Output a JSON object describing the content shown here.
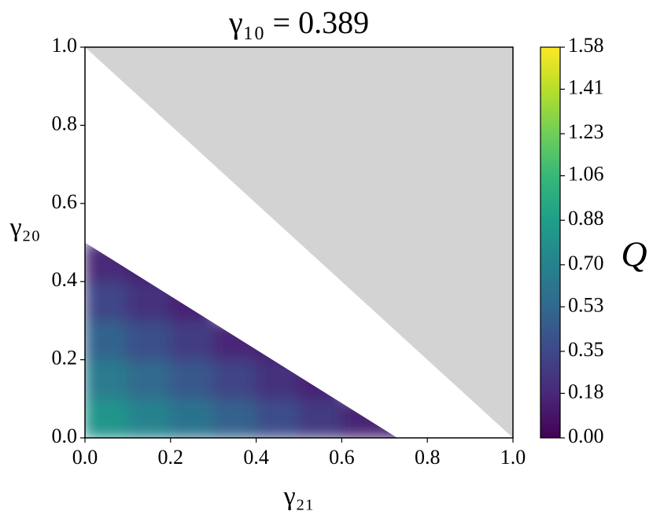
{
  "chart_data": {
    "type": "heatmap",
    "title": "γ₁₀ = 0.389",
    "x_label": "γ₂₁",
    "y_label": "γ₂₀",
    "colorbar_label": "Q",
    "colormap": "viridis",
    "x": [
      0.05,
      0.15,
      0.25,
      0.35,
      0.45,
      0.55,
      0.65,
      0.75
    ],
    "y": [
      0.05,
      0.15,
      0.25,
      0.35,
      0.45
    ],
    "z": [
      [
        0.82,
        0.71,
        0.6,
        0.49,
        0.38,
        0.27,
        0.16,
        0.15
      ],
      [
        0.66,
        0.55,
        0.44,
        0.33,
        0.22,
        0.15,
        null,
        null
      ],
      [
        0.5,
        0.39,
        0.28,
        0.17,
        0.15,
        null,
        null,
        null
      ],
      [
        0.34,
        0.23,
        0.15,
        null,
        null,
        null,
        null,
        null
      ],
      [
        0.18,
        0.15,
        null,
        null,
        null,
        null,
        null,
        null
      ]
    ],
    "region": [
      [
        0,
        0
      ],
      [
        0.73,
        0
      ],
      [
        0,
        0.5
      ]
    ],
    "masked_region": [
      [
        0,
        1
      ],
      [
        1,
        1
      ],
      [
        1,
        0
      ]
    ],
    "masked_color": "#d3d3d3",
    "clim": [
      0,
      1.58
    ],
    "xlim": [
      0,
      1
    ],
    "ylim": [
      0,
      1
    ],
    "xticks": [
      {
        "value": 0,
        "label": "0.0"
      },
      {
        "value": 0.2,
        "label": "0.2"
      },
      {
        "value": 0.4,
        "label": "0.4"
      },
      {
        "value": 0.6,
        "label": "0.6"
      },
      {
        "value": 0.8,
        "label": "0.8"
      },
      {
        "value": 1,
        "label": "1.0"
      }
    ],
    "yticks": [
      {
        "value": 0,
        "label": "0.0"
      },
      {
        "value": 0.2,
        "label": "0.2"
      },
      {
        "value": 0.4,
        "label": "0.4"
      },
      {
        "value": 0.6,
        "label": "0.6"
      },
      {
        "value": 0.8,
        "label": "0.8"
      },
      {
        "value": 1,
        "label": "1.0"
      }
    ],
    "cticks": [
      {
        "value": 0,
        "label": "0.00"
      },
      {
        "value": 0.18,
        "label": "0.18"
      },
      {
        "value": 0.35,
        "label": "0.35"
      },
      {
        "value": 0.53,
        "label": "0.53"
      },
      {
        "value": 0.7,
        "label": "0.70"
      },
      {
        "value": 0.88,
        "label": "0.88"
      },
      {
        "value": 1.06,
        "label": "1.06"
      },
      {
        "value": 1.23,
        "label": "1.23"
      },
      {
        "value": 1.41,
        "label": "1.41"
      },
      {
        "value": 1.58,
        "label": "1.58"
      }
    ]
  }
}
